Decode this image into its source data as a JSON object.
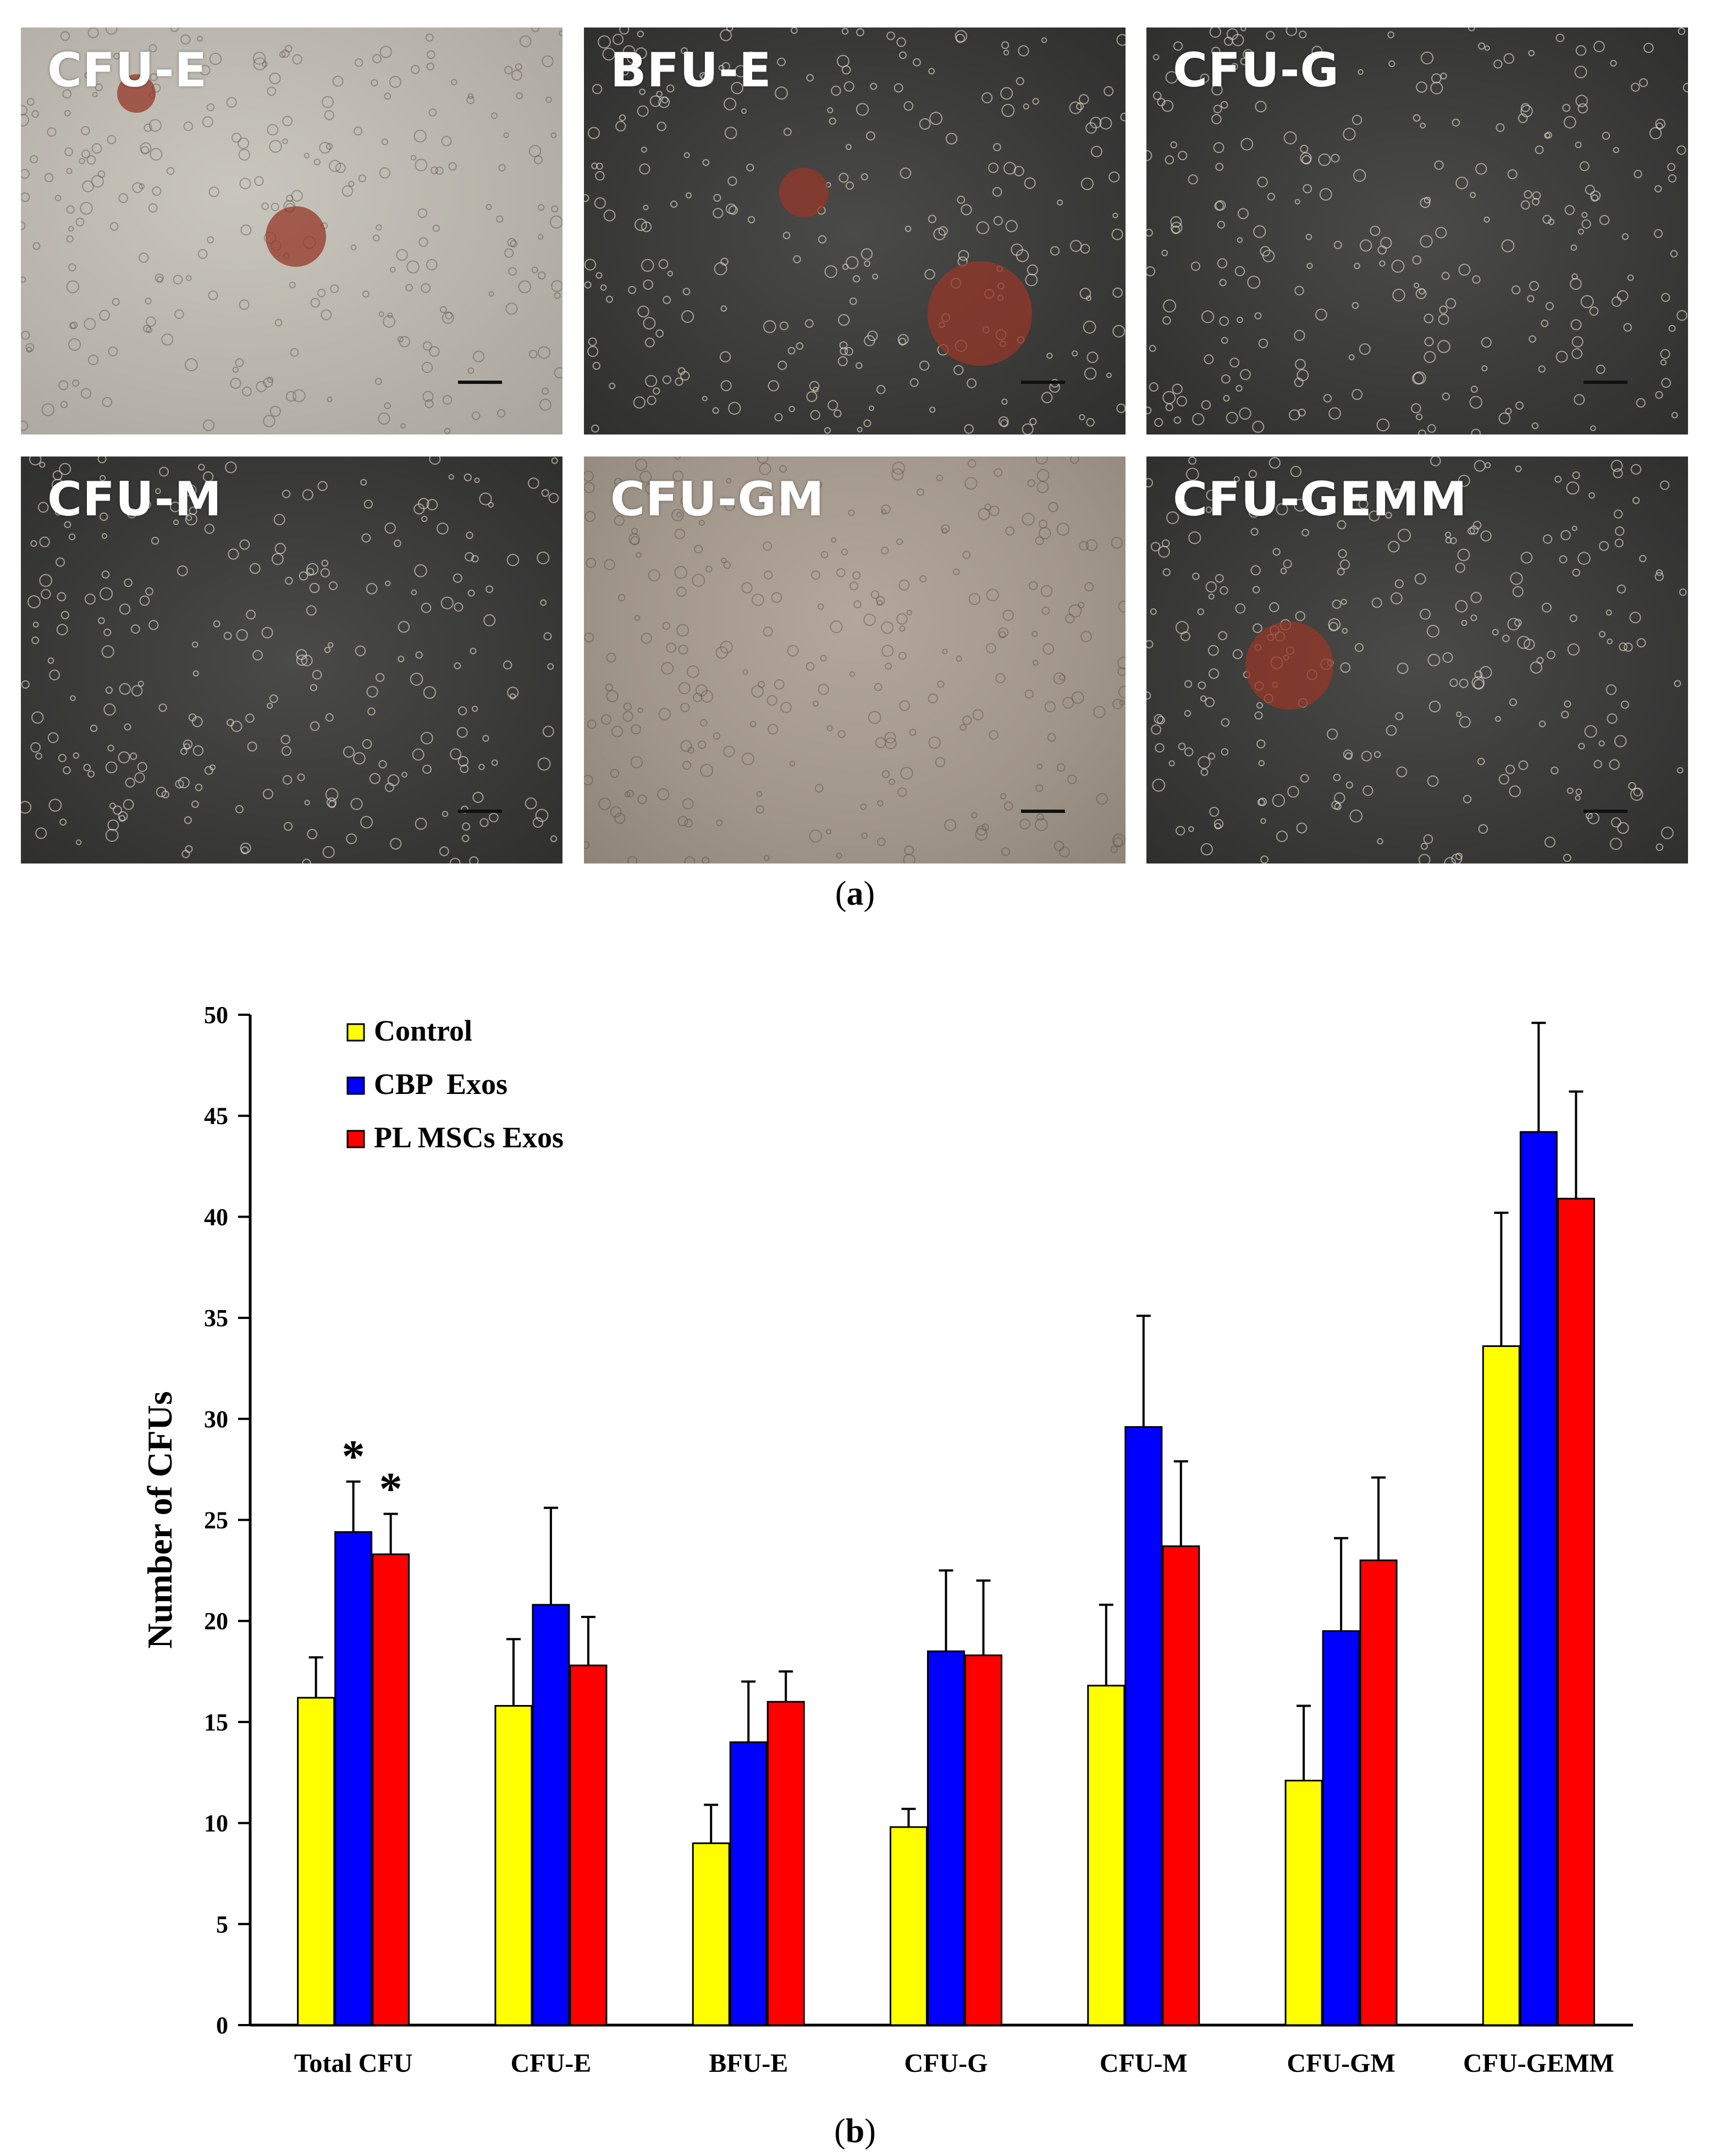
{
  "figure": {
    "panel_a": {
      "caption_open": "(",
      "caption_letter": "a",
      "caption_close": ")",
      "images": [
        {
          "label": "CFU-E",
          "tone": "light"
        },
        {
          "label": "BFU-E",
          "tone": "dark"
        },
        {
          "label": "CFU-G",
          "tone": "dark"
        },
        {
          "label": "CFU-M",
          "tone": "dark"
        },
        {
          "label": "CFU-GM",
          "tone": "mixed"
        },
        {
          "label": "CFU-GEMM",
          "tone": "dark"
        }
      ]
    },
    "panel_b": {
      "caption_open": "(",
      "caption_letter": "b",
      "caption_close": ")"
    }
  },
  "chart_data": {
    "type": "bar",
    "title": "",
    "xlabel": "",
    "ylabel": "Number of CFUs",
    "ylim": [
      0,
      50
    ],
    "yticks": [
      0,
      5,
      10,
      15,
      20,
      25,
      30,
      35,
      40,
      45,
      50
    ],
    "categories": [
      "Total CFU",
      "CFU-E",
      "BFU-E",
      "CFU-G",
      "CFU-M",
      "CFU-GM",
      "CFU-GEMM"
    ],
    "series": [
      {
        "name": "Control",
        "color": "#ffff00",
        "values": [
          16.2,
          15.8,
          9.0,
          9.8,
          16.8,
          12.1,
          33.6
        ],
        "errors": [
          2.0,
          3.3,
          1.9,
          0.9,
          4.0,
          3.7,
          6.6
        ]
      },
      {
        "name": "CBP  Exos",
        "color": "#0000ff",
        "values": [
          24.4,
          20.8,
          14.0,
          18.5,
          29.6,
          19.5,
          44.2
        ],
        "errors": [
          2.5,
          4.8,
          3.0,
          4.0,
          5.5,
          4.6,
          5.4
        ]
      },
      {
        "name": "PL MSCs Exos",
        "color": "#ff0000",
        "values": [
          23.3,
          17.8,
          16.0,
          18.3,
          23.7,
          23.0,
          40.9
        ],
        "errors": [
          2.0,
          2.4,
          1.5,
          3.7,
          4.2,
          4.1,
          5.3
        ]
      }
    ],
    "annotations": [
      {
        "text": "*",
        "category": "Total CFU",
        "series": "CBP  Exos"
      },
      {
        "text": "*",
        "category": "Total CFU",
        "series": "PL MSCs Exos"
      }
    ],
    "legend_position": "top-left",
    "grid": false
  }
}
